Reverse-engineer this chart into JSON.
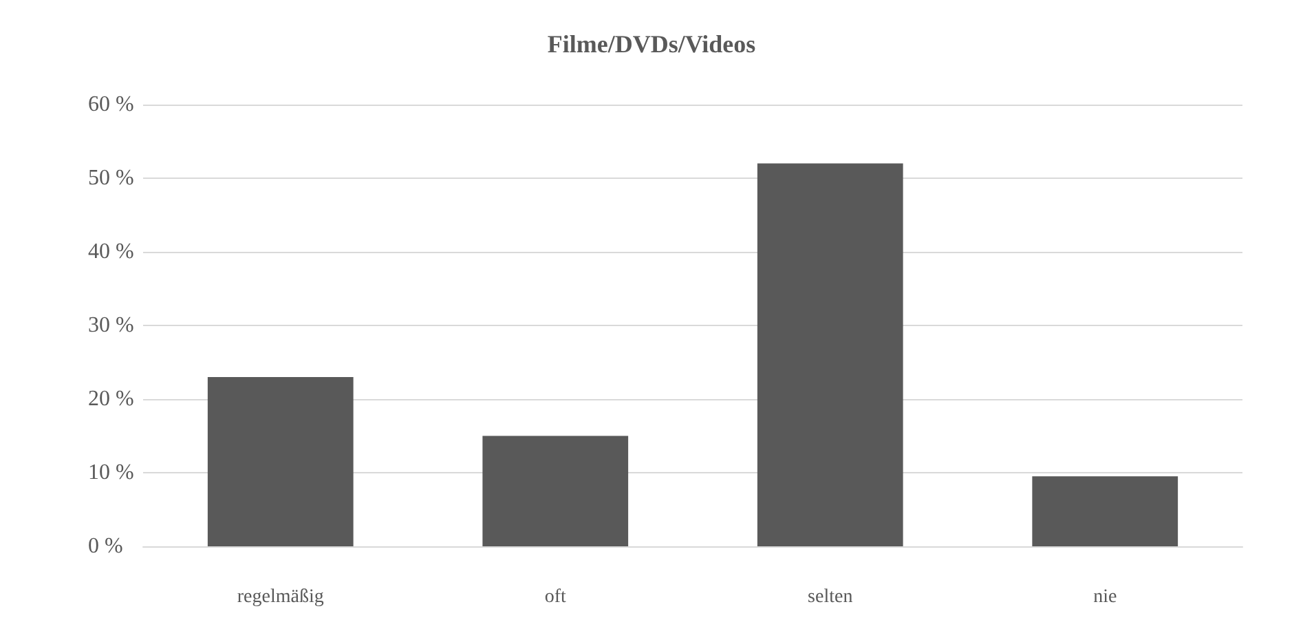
{
  "chart_data": {
    "type": "bar",
    "title": "Filme/DVDs/Videos",
    "categories": [
      "regelmäßig",
      "oft",
      "selten",
      "nie"
    ],
    "values": [
      23,
      15,
      52,
      9.5
    ],
    "color": "#595959",
    "ylim": [
      0,
      60
    ],
    "yticks": [
      {
        "value": 0,
        "label": "0 %"
      },
      {
        "value": 10,
        "label": "10 %"
      },
      {
        "value": 20,
        "label": "20 %"
      },
      {
        "value": 30,
        "label": "30 %"
      },
      {
        "value": 40,
        "label": "40 %"
      },
      {
        "value": 50,
        "label": "50 %"
      },
      {
        "value": 60,
        "label": "60 %"
      }
    ],
    "grid": "y"
  }
}
